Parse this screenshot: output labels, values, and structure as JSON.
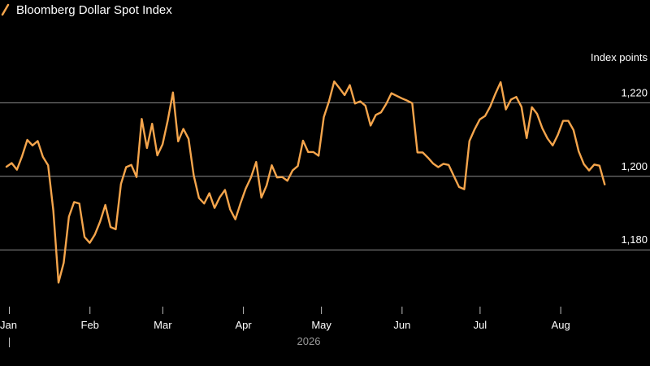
{
  "chart_data": {
    "type": "line",
    "title": "Bloomberg Dollar Spot Index",
    "unit_label": "Index points",
    "year_label": "2026",
    "line_color": "#f5a54c",
    "ylim": [
      1165,
      1238
    ],
    "yticks": [
      {
        "value": 1220,
        "label": "1,220"
      },
      {
        "value": 1200,
        "label": "1,200"
      },
      {
        "value": 1180,
        "label": "1,180"
      }
    ],
    "month_ticks": [
      {
        "day": 0,
        "label": "Jan"
      },
      {
        "day": 31,
        "label": "Feb"
      },
      {
        "day": 59,
        "label": "Mar"
      },
      {
        "day": 90,
        "label": "Apr"
      },
      {
        "day": 120,
        "label": "May"
      },
      {
        "day": 151,
        "label": "Jun"
      },
      {
        "day": 181,
        "label": "Jul"
      },
      {
        "day": 212,
        "label": "Aug"
      }
    ],
    "grid": "horizontal",
    "x_day_range": [
      0,
      231.8
    ],
    "series": [
      {
        "x": [
          0,
          2,
          4,
          6,
          8,
          10,
          12,
          14,
          16,
          18,
          20,
          22,
          24,
          26,
          28,
          30,
          32,
          34,
          36,
          38,
          40,
          42,
          44,
          46,
          48,
          50,
          52,
          54,
          56,
          58,
          60,
          62,
          64,
          66,
          68,
          70,
          72,
          74,
          76,
          78,
          80,
          82,
          84,
          86,
          88,
          90,
          92,
          94,
          96,
          98,
          100,
          102,
          104,
          106,
          108,
          110,
          112,
          114,
          116,
          118,
          120,
          122,
          124,
          126,
          128,
          130,
          132,
          134,
          136,
          138,
          140,
          142,
          144,
          146,
          148,
          150,
          152,
          154,
          156,
          158,
          160,
          162,
          164,
          166,
          168,
          170,
          172,
          174,
          176,
          178,
          180,
          182,
          184,
          186,
          188,
          190,
          192,
          194,
          196,
          198,
          200,
          202,
          204,
          206,
          208,
          210,
          212,
          214,
          216,
          218,
          220,
          222,
          224,
          226,
          228,
          230
        ],
        "y": [
          1202.6,
          1203.6,
          1201.8,
          1205.5,
          1209.9,
          1208.4,
          1209.6,
          1205.3,
          1203.0,
          1190.7,
          1171.1,
          1176.5,
          1189.0,
          1193.0,
          1192.6,
          1183.5,
          1181.9,
          1184.2,
          1187.7,
          1192.2,
          1186.2,
          1185.6,
          1197.9,
          1202.5,
          1203.1,
          1199.8,
          1215.6,
          1207.7,
          1214.3,
          1205.7,
          1208.7,
          1215.2,
          1222.8,
          1209.5,
          1212.9,
          1210.2,
          1200.2,
          1194.1,
          1192.6,
          1195.4,
          1191.4,
          1194.3,
          1196.3,
          1191.0,
          1188.3,
          1192.7,
          1196.7,
          1199.7,
          1203.9,
          1194.2,
          1197.5,
          1203.0,
          1199.7,
          1199.8,
          1198.8,
          1201.6,
          1202.8,
          1209.7,
          1206.6,
          1206.6,
          1205.6,
          1216.1,
          1220.4,
          1225.8,
          1224.0,
          1222.1,
          1224.8,
          1219.8,
          1220.4,
          1219.2,
          1213.8,
          1216.7,
          1217.4,
          1219.7,
          1222.6,
          1221.9,
          1221.2,
          1220.6,
          1219.9,
          1206.5,
          1206.5,
          1205.1,
          1203.5,
          1202.5,
          1203.4,
          1203.1,
          1200.1,
          1197.1,
          1196.5,
          1209.6,
          1212.8,
          1215.5,
          1216.4,
          1219.0,
          1222.5,
          1225.6,
          1218.2,
          1220.9,
          1221.6,
          1218.9,
          1210.4,
          1218.8,
          1217.0,
          1213.1,
          1210.3,
          1208.4,
          1211.3,
          1215.1,
          1215.1,
          1212.6,
          1206.8,
          1203.3,
          1201.6,
          1203.2,
          1202.9,
          1197.8
        ]
      }
    ]
  }
}
